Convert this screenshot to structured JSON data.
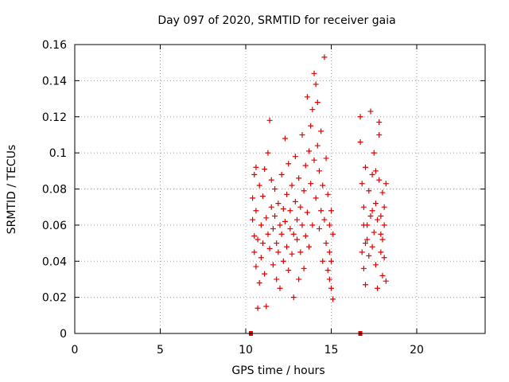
{
  "chart_data": {
    "type": "scatter",
    "title": "Day 097 of 2020, SRMTID for receiver gaia",
    "xlabel": "GPS time / hours",
    "ylabel": "SRMTID / TECUs",
    "xlim": [
      0,
      24
    ],
    "ylim": [
      0,
      0.16
    ],
    "xticks": [
      0,
      5,
      10,
      15,
      20
    ],
    "yticks": [
      0,
      0.02,
      0.04,
      0.06,
      0.08,
      0.1,
      0.12,
      0.14,
      0.16
    ],
    "xtick_labels": [
      "0",
      "5",
      "10",
      "15",
      "20"
    ],
    "ytick_labels": [
      "0",
      "0.02",
      "0.04",
      "0.06",
      "0.08",
      "0.1",
      "0.12",
      "0.14",
      "0.16"
    ],
    "grid": true,
    "color": "#e00000",
    "marker": "plus",
    "series": [
      {
        "values_xy": [
          [
            10.4,
            0.063
          ],
          [
            10.4,
            0.075
          ],
          [
            10.5,
            0.088
          ],
          [
            10.5,
            0.054
          ],
          [
            10.5,
            0.045
          ],
          [
            10.6,
            0.092
          ],
          [
            10.6,
            0.037
          ],
          [
            10.6,
            0.068
          ],
          [
            10.7,
            0.014
          ],
          [
            10.7,
            0.052
          ],
          [
            10.8,
            0.082
          ],
          [
            10.8,
            0.028
          ],
          [
            10.9,
            0.06
          ],
          [
            10.9,
            0.042
          ],
          [
            11.0,
            0.076
          ],
          [
            11.0,
            0.05
          ],
          [
            11.1,
            0.033
          ],
          [
            11.1,
            0.091
          ],
          [
            11.2,
            0.015
          ],
          [
            11.2,
            0.064
          ],
          [
            11.3,
            0.055
          ],
          [
            11.3,
            0.1
          ],
          [
            11.4,
            0.118
          ],
          [
            11.4,
            0.047
          ],
          [
            11.5,
            0.07
          ],
          [
            11.5,
            0.085
          ],
          [
            11.6,
            0.058
          ],
          [
            11.6,
            0.038
          ],
          [
            11.7,
            0.065
          ],
          [
            11.7,
            0.08
          ],
          [
            11.8,
            0.05
          ],
          [
            11.8,
            0.03
          ],
          [
            11.9,
            0.072
          ],
          [
            11.9,
            0.045
          ],
          [
            12.0,
            0.06
          ],
          [
            12.0,
            0.025
          ],
          [
            12.1,
            0.088
          ],
          [
            12.1,
            0.055
          ],
          [
            12.2,
            0.04
          ],
          [
            12.2,
            0.069
          ],
          [
            12.3,
            0.108
          ],
          [
            12.3,
            0.062
          ],
          [
            12.4,
            0.048
          ],
          [
            12.4,
            0.077
          ],
          [
            12.5,
            0.035
          ],
          [
            12.5,
            0.094
          ],
          [
            12.6,
            0.058
          ],
          [
            12.6,
            0.068
          ],
          [
            12.7,
            0.044
          ],
          [
            12.7,
            0.082
          ],
          [
            12.8,
            0.02
          ],
          [
            12.8,
            0.055
          ],
          [
            12.9,
            0.073
          ],
          [
            12.9,
            0.098
          ],
          [
            13.0,
            0.052
          ],
          [
            13.0,
            0.063
          ],
          [
            13.1,
            0.086
          ],
          [
            13.1,
            0.03
          ],
          [
            13.2,
            0.07
          ],
          [
            13.2,
            0.045
          ],
          [
            13.3,
            0.11
          ],
          [
            13.3,
            0.06
          ],
          [
            13.4,
            0.079
          ],
          [
            13.4,
            0.036
          ],
          [
            13.5,
            0.093
          ],
          [
            13.5,
            0.054
          ],
          [
            13.6,
            0.131
          ],
          [
            13.6,
            0.067
          ],
          [
            13.7,
            0.101
          ],
          [
            13.7,
            0.048
          ],
          [
            13.8,
            0.115
          ],
          [
            13.8,
            0.083
          ],
          [
            13.9,
            0.124
          ],
          [
            13.9,
            0.06
          ],
          [
            14.0,
            0.144
          ],
          [
            14.0,
            0.096
          ],
          [
            14.1,
            0.138
          ],
          [
            14.1,
            0.075
          ],
          [
            14.2,
            0.128
          ],
          [
            14.2,
            0.104
          ],
          [
            14.3,
            0.09
          ],
          [
            14.3,
            0.058
          ],
          [
            14.4,
            0.112
          ],
          [
            14.4,
            0.068
          ],
          [
            14.5,
            0.082
          ],
          [
            14.5,
            0.04
          ],
          [
            14.6,
            0.153
          ],
          [
            14.6,
            0.063
          ],
          [
            14.7,
            0.097
          ],
          [
            14.7,
            0.05
          ],
          [
            14.8,
            0.077
          ],
          [
            14.8,
            0.035
          ],
          [
            14.9,
            0.06
          ],
          [
            14.9,
            0.045
          ],
          [
            15.0,
            0.068
          ],
          [
            15.0,
            0.025
          ],
          [
            15.1,
            0.055
          ],
          [
            15.1,
            0.019
          ],
          [
            15.0,
            0.04
          ],
          [
            14.9,
            0.03
          ],
          [
            16.7,
            0.12
          ],
          [
            16.7,
            0.106
          ],
          [
            16.8,
            0.083
          ],
          [
            16.8,
            0.045
          ],
          [
            16.9,
            0.07
          ],
          [
            16.9,
            0.036
          ],
          [
            17.0,
            0.092
          ],
          [
            17.0,
            0.027
          ],
          [
            17.1,
            0.06
          ],
          [
            17.1,
            0.052
          ],
          [
            17.2,
            0.079
          ],
          [
            17.2,
            0.043
          ],
          [
            17.3,
            0.123
          ],
          [
            17.3,
            0.065
          ],
          [
            17.4,
            0.088
          ],
          [
            17.4,
            0.048
          ],
          [
            17.5,
            0.1
          ],
          [
            17.5,
            0.056
          ],
          [
            17.6,
            0.072
          ],
          [
            17.6,
            0.038
          ],
          [
            17.7,
            0.063
          ],
          [
            17.7,
            0.025
          ],
          [
            17.8,
            0.117
          ],
          [
            17.8,
            0.085
          ],
          [
            17.9,
            0.055
          ],
          [
            17.9,
            0.045
          ],
          [
            18.0,
            0.078
          ],
          [
            18.0,
            0.032
          ],
          [
            18.1,
            0.07
          ],
          [
            18.1,
            0.042
          ],
          [
            18.2,
            0.083
          ],
          [
            18.2,
            0.029
          ],
          [
            18.1,
            0.06
          ],
          [
            17.8,
            0.11
          ],
          [
            17.4,
            0.068
          ],
          [
            17.0,
            0.05
          ],
          [
            16.9,
            0.06
          ],
          [
            17.6,
            0.09
          ],
          [
            17.9,
            0.065
          ],
          [
            18.0,
            0.052
          ]
        ]
      }
    ],
    "baseline_markers_x": [
      10.3,
      16.7
    ]
  }
}
